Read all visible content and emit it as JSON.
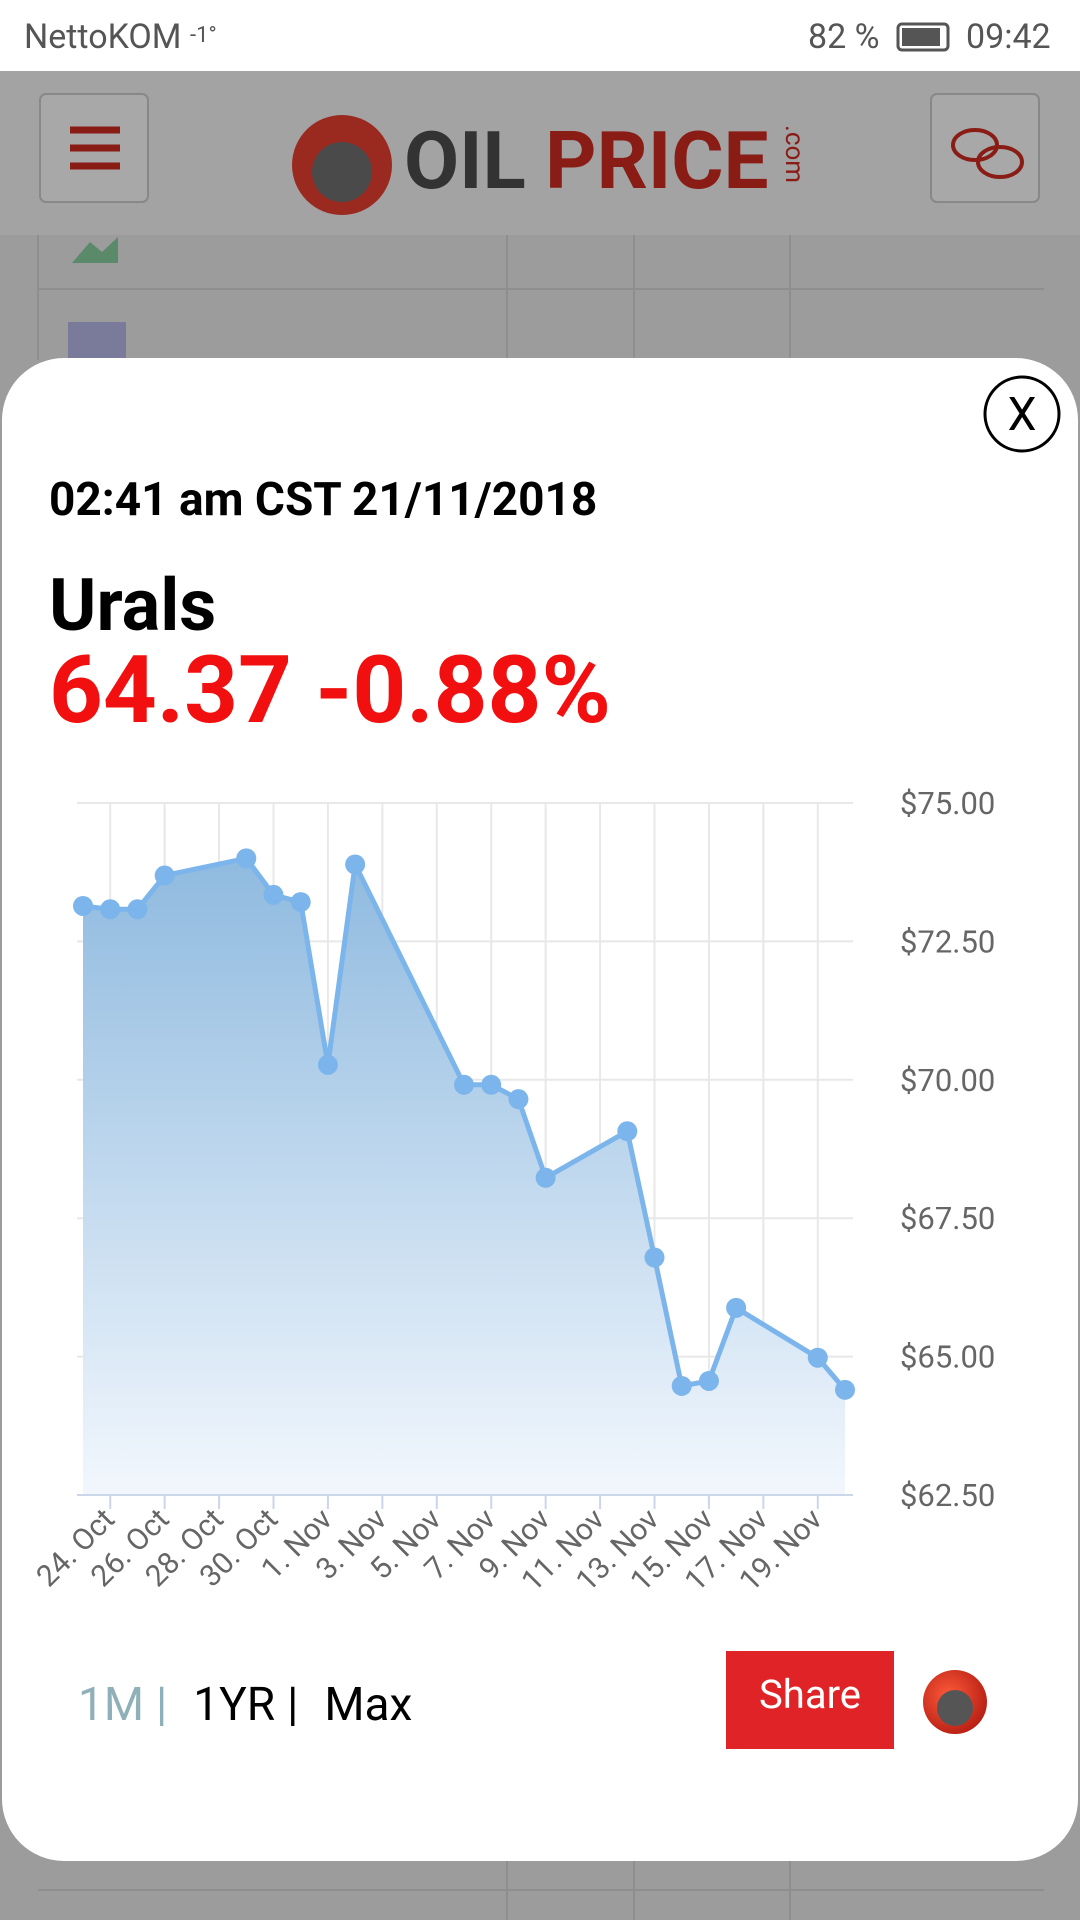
{
  "status_bar": {
    "carrier": "NettoKOM",
    "temperature": "-1°",
    "battery": "82 %",
    "time": "09:42"
  },
  "header": {
    "logo_oil": "OIL",
    "logo_price": "PRICE",
    "logo_com": ".com"
  },
  "popup": {
    "close": "X",
    "timestamp": "02:41 am CST 21/11/2018",
    "name": "Urals",
    "price": "64.37",
    "change": "-0.88%",
    "chart": {
      "type": "area",
      "x": [
        "23. Oct",
        "24. Oct",
        "25. Oct",
        "26. Oct",
        "29. Oct",
        "30. Oct",
        "31. Oct",
        "1. Nov",
        "2. Nov",
        "6. Nov",
        "7. Nov",
        "8. Nov",
        "9. Nov",
        "12. Nov",
        "13. Nov",
        "14. Nov",
        "15. Nov",
        "16. Nov",
        "19. Nov",
        "20. Nov"
      ],
      "values": [
        73.14,
        73.08,
        73.08,
        73.69,
        74.0,
        73.34,
        73.21,
        70.27,
        73.89,
        69.91,
        69.91,
        69.65,
        68.23,
        69.07,
        66.79,
        64.47,
        64.56,
        65.88,
        64.98,
        64.4
      ],
      "color": "#7cb5ec",
      "xlim": [
        "23. Oct",
        "20. Nov"
      ],
      "xticks": [
        "24. Oct",
        "26. Oct",
        "28. Oct",
        "30. Oct",
        "1. Nov",
        "3. Nov",
        "5. Nov",
        "7. Nov",
        "9. Nov",
        "11. Nov",
        "13. Nov",
        "15. Nov",
        "17. Nov",
        "19. Nov"
      ],
      "ylim": [
        62.5,
        75
      ],
      "yticks": [
        {
          "value": 62.5,
          "label": "$62.50"
        },
        {
          "value": 65,
          "label": "$65.00"
        },
        {
          "value": 67.5,
          "label": "$67.50"
        },
        {
          "value": 70,
          "label": "$70.00"
        },
        {
          "value": 72.5,
          "label": "$72.50"
        },
        {
          "value": 75,
          "label": "$75.00"
        }
      ],
      "grid": true
    },
    "ranges": [
      "1M",
      "1YR",
      "Max"
    ],
    "separator": "|",
    "share": "Share"
  }
}
